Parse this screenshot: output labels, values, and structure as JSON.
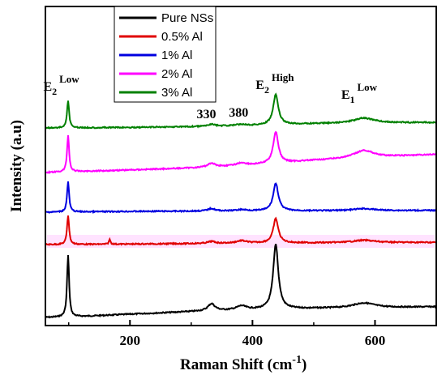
{
  "chart_data": {
    "type": "line",
    "title": "",
    "xlabel": "Raman Shift (cm",
    "xlabel_sup": "-1",
    "xlabel_close": ")",
    "ylabel": "Intensity (a.u)",
    "xlim": [
      62,
      700
    ],
    "x_ticks": [
      200,
      400,
      600
    ],
    "y_ticks_shown": false,
    "grid": false,
    "legend_position": "top-left",
    "annotations": [
      {
        "main": "E",
        "sub": "2",
        "sup": "Low",
        "x": 97
      },
      {
        "main": "330",
        "x": 330
      },
      {
        "main": "380",
        "x": 380
      },
      {
        "main": "E",
        "sub": "2",
        "sup": "High",
        "x": 437
      },
      {
        "main": "E",
        "sub": "1",
        "sup": "Low",
        "x": 582
      }
    ],
    "series": [
      {
        "name": "Pure NSs",
        "color": "#000000",
        "baseline": [
          [
            62,
            0.0
          ],
          [
            120,
            0.03
          ],
          [
            200,
            0.1
          ],
          [
            300,
            0.18
          ],
          [
            400,
            0.24
          ],
          [
            500,
            0.28
          ],
          [
            600,
            0.3
          ],
          [
            700,
            0.33
          ]
        ],
        "peaks": [
          [
            99,
            1.9,
            2.0
          ],
          [
            333,
            0.22,
            7
          ],
          [
            382,
            0.12,
            10
          ],
          [
            438,
            2.0,
            5
          ],
          [
            582,
            0.15,
            22
          ]
        ]
      },
      {
        "name": "0.5% Al",
        "color": "#e00000",
        "baseline": [
          [
            62,
            0.0
          ],
          [
            200,
            0.02
          ],
          [
            400,
            0.06
          ],
          [
            600,
            0.08
          ],
          [
            700,
            0.09
          ]
        ],
        "peaks": [
          [
            99,
            1.2,
            2.0
          ],
          [
            167,
            0.2,
            1.5
          ],
          [
            333,
            0.08,
            7
          ],
          [
            382,
            0.1,
            10
          ],
          [
            438,
            1.0,
            5
          ],
          [
            582,
            0.1,
            22
          ]
        ]
      },
      {
        "name": "1% Al",
        "color": "#0000e0",
        "baseline": [
          [
            62,
            0.0
          ],
          [
            200,
            0.03
          ],
          [
            400,
            0.05
          ],
          [
            600,
            0.06
          ],
          [
            700,
            0.07
          ]
        ],
        "peaks": [
          [
            99,
            1.2,
            2.0
          ],
          [
            333,
            0.1,
            7
          ],
          [
            382,
            0.05,
            10
          ],
          [
            438,
            1.1,
            5
          ],
          [
            582,
            0.08,
            22
          ]
        ]
      },
      {
        "name": "2% Al",
        "color": "#ff00ff",
        "baseline": [
          [
            62,
            0.0
          ],
          [
            200,
            0.1
          ],
          [
            300,
            0.18
          ],
          [
            400,
            0.3
          ],
          [
            500,
            0.48
          ],
          [
            600,
            0.6
          ],
          [
            700,
            0.72
          ]
        ],
        "peaks": [
          [
            99,
            1.45,
            2.0
          ],
          [
            333,
            0.15,
            7
          ],
          [
            382,
            0.1,
            10
          ],
          [
            438,
            1.25,
            5
          ],
          [
            582,
            0.3,
            20
          ]
        ]
      },
      {
        "name": "3% Al",
        "color": "#008000",
        "baseline": [
          [
            62,
            0.0
          ],
          [
            200,
            0.02
          ],
          [
            300,
            0.05
          ],
          [
            400,
            0.1
          ],
          [
            500,
            0.17
          ],
          [
            600,
            0.2
          ],
          [
            700,
            0.22
          ]
        ],
        "peaks": [
          [
            99,
            1.1,
            2.0
          ],
          [
            333,
            0.08,
            7
          ],
          [
            382,
            0.05,
            10
          ],
          [
            438,
            1.2,
            5
          ],
          [
            582,
            0.2,
            20
          ]
        ]
      }
    ]
  },
  "legend": {
    "items": [
      {
        "label": "Pure NSs",
        "color": "#000000"
      },
      {
        "label": "0.5% Al",
        "color": "#e00000"
      },
      {
        "label": "1% Al",
        "color": "#0000e0"
      },
      {
        "label": "2% Al",
        "color": "#ff00ff"
      },
      {
        "label": "3% Al",
        "color": "#008000"
      }
    ]
  }
}
